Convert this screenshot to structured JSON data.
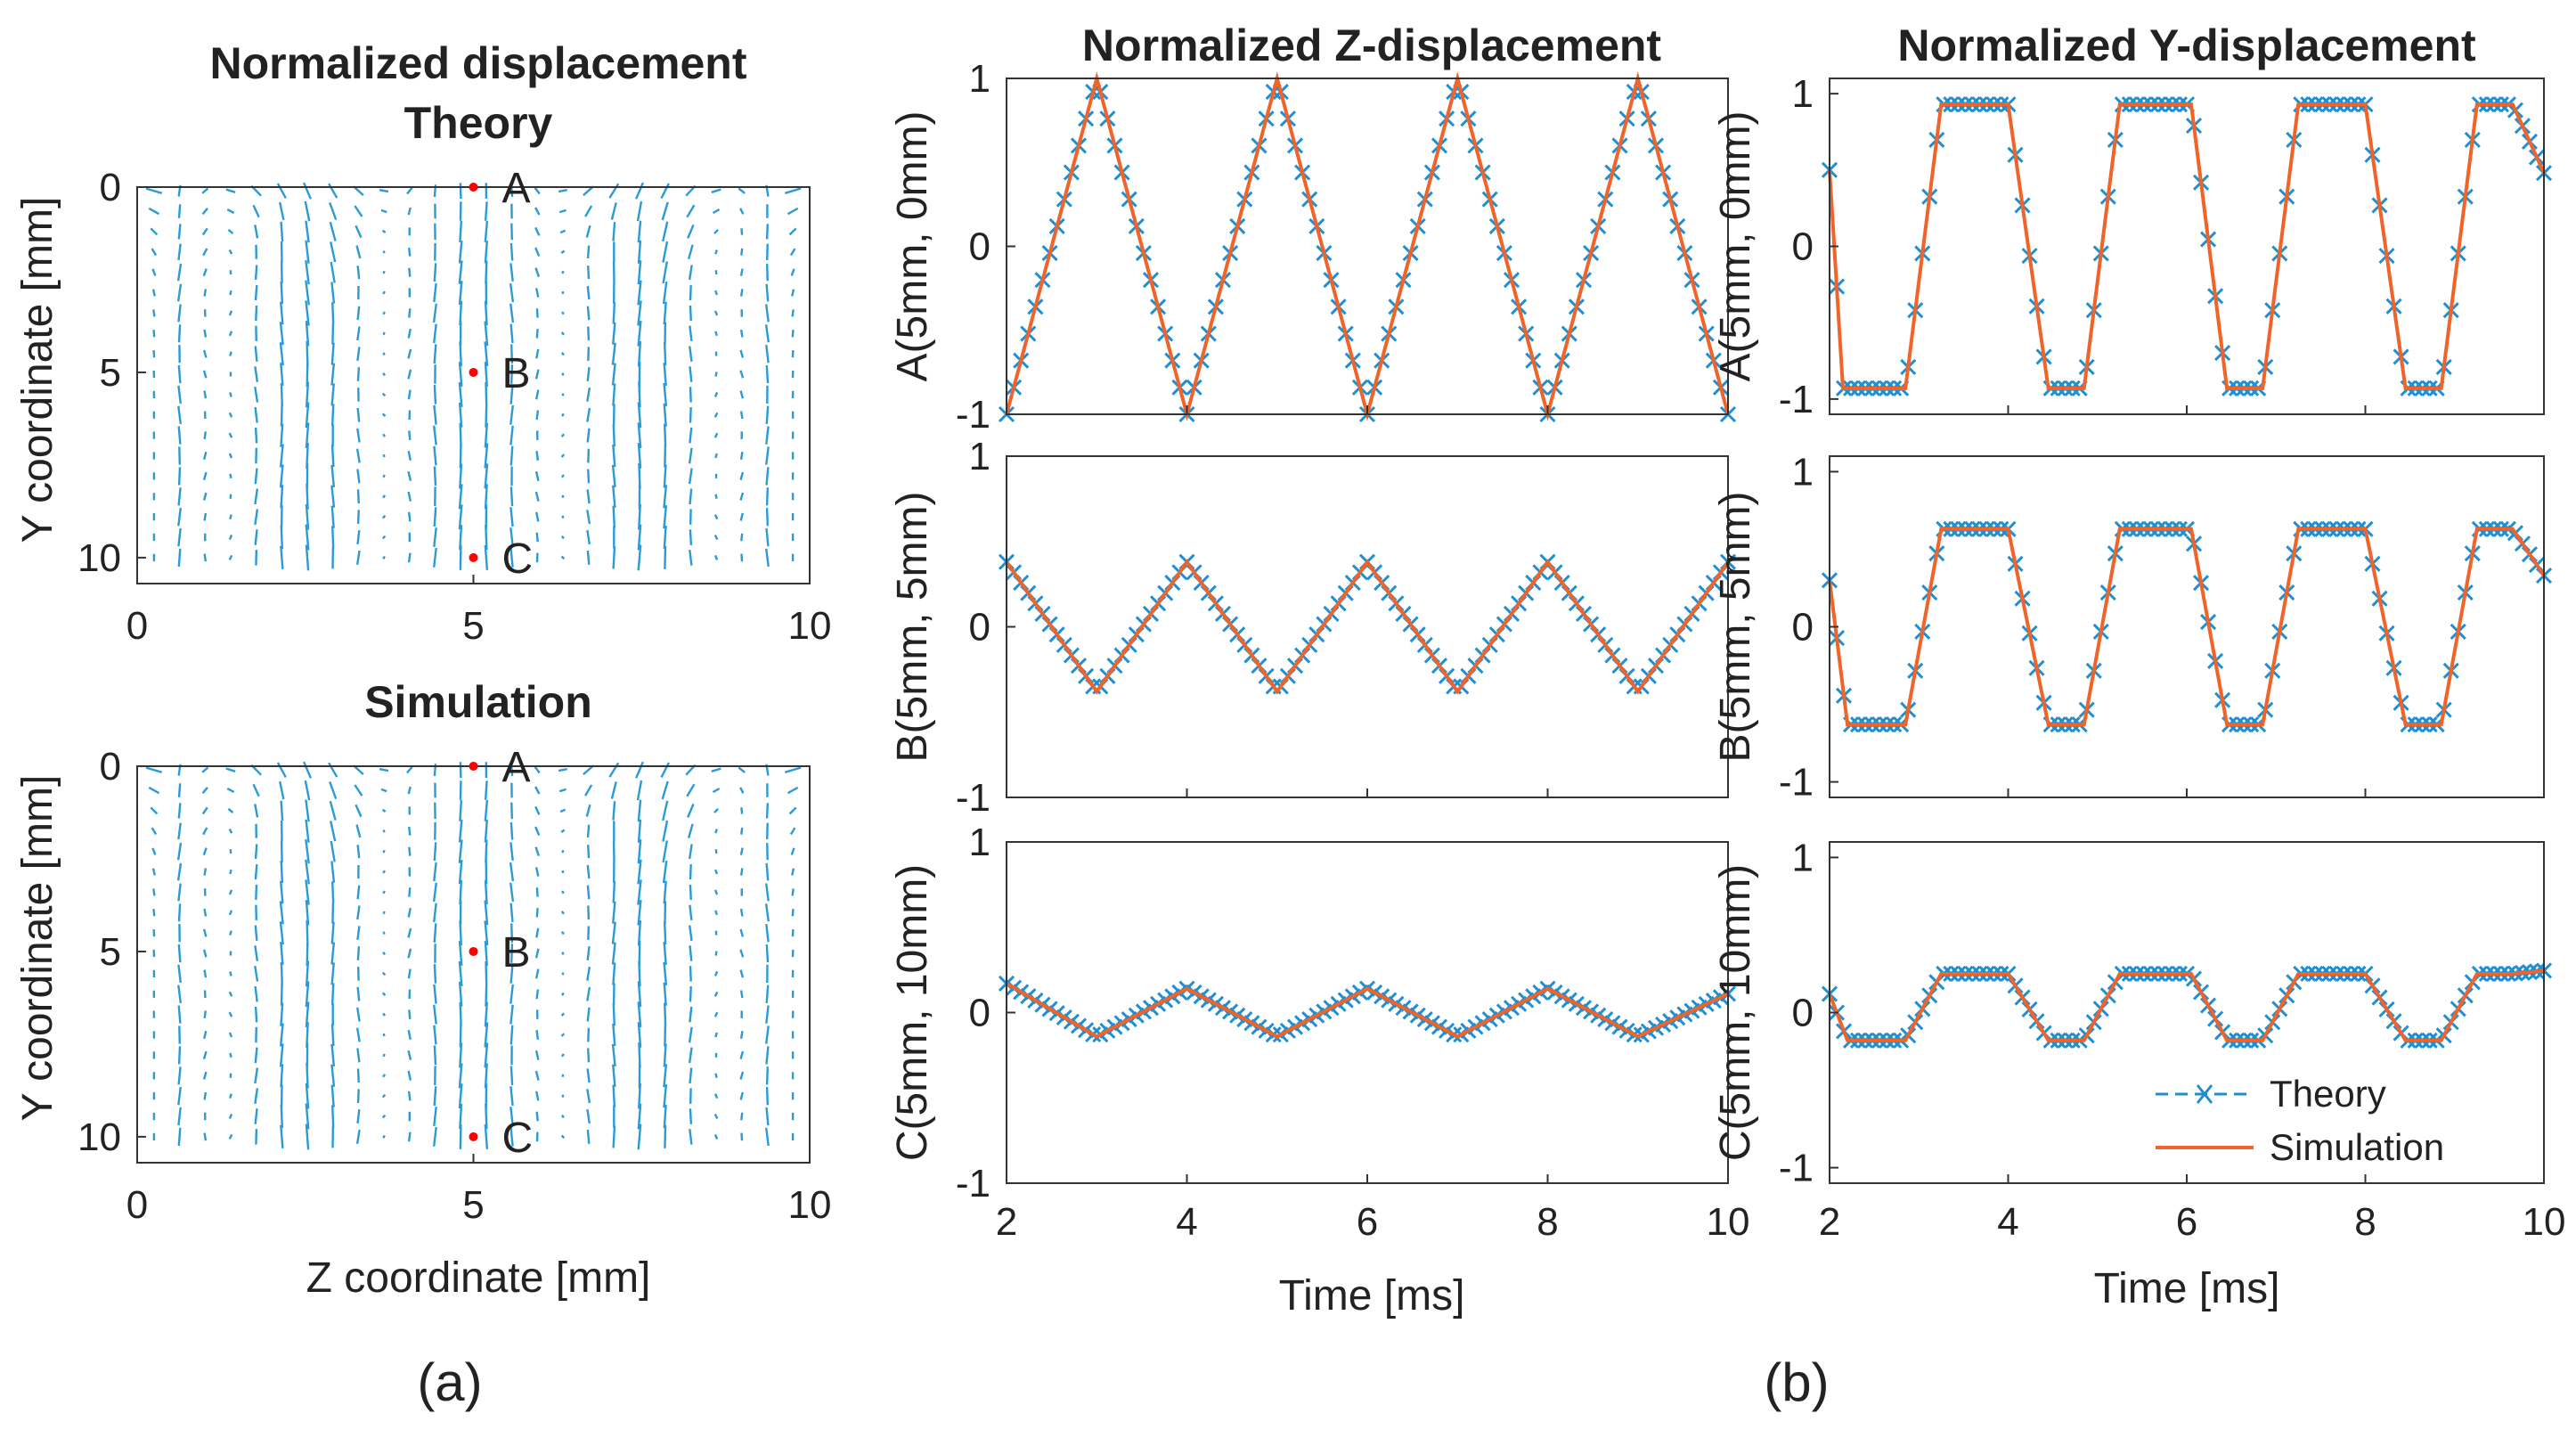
{
  "figure": {
    "caption_a": "(a)",
    "caption_b": "(b)",
    "colors": {
      "theory": "#1f8fd4",
      "simulation": "#f0642a",
      "point": "#ff0000",
      "axis": "#333333",
      "quiver": "#2b9bd8"
    }
  },
  "panel_a": {
    "heading": "Normalized displacement",
    "plots": [
      {
        "title": "Theory"
      },
      {
        "title": "Simulation"
      }
    ],
    "xlabel": "Z coordinate [mm]",
    "ylabel": "Y coordinate [mm]",
    "xticks": [
      "0",
      "5",
      "10"
    ],
    "yticks": [
      "0",
      "5",
      "10"
    ],
    "xlim": [
      0,
      10
    ],
    "ylim": [
      0,
      10.7
    ],
    "points": [
      {
        "label": "A",
        "z": 5,
        "y": 0
      },
      {
        "label": "B",
        "z": 5,
        "y": 5
      },
      {
        "label": "C",
        "z": 5,
        "y": 10
      }
    ]
  },
  "panel_b": {
    "col_titles": [
      "Normalized Z-displacement",
      "Normalized Y-displacement"
    ],
    "ylabels": [
      "A(5mm, 0mm)",
      "B(5mm, 5mm)",
      "C(5mm, 10mm)"
    ],
    "xlabel": "Time [ms]",
    "xticks": [
      "2",
      "4",
      "6",
      "8",
      "10"
    ],
    "yticks": [
      "-1",
      "0",
      "1"
    ],
    "legend": {
      "theory": "Theory",
      "simulation": "Simulation"
    }
  },
  "chart_data": [
    {
      "type": "scatter",
      "title": "Theory",
      "xlabel": "Z coordinate [mm]",
      "ylabel": "Y coordinate [mm]",
      "xlim": [
        0,
        10
      ],
      "ylim": [
        10.7,
        0
      ],
      "annotations": [
        {
          "label": "A",
          "z": 5,
          "y": 0
        },
        {
          "label": "B",
          "z": 5,
          "y": 5
        },
        {
          "label": "C",
          "z": 5,
          "y": 10
        }
      ]
    },
    {
      "type": "scatter",
      "title": "Simulation",
      "xlabel": "Z coordinate [mm]",
      "ylabel": "Y coordinate [mm]",
      "xlim": [
        0,
        10
      ],
      "ylim": [
        10.7,
        0
      ],
      "annotations": [
        {
          "label": "A",
          "z": 5,
          "y": 0
        },
        {
          "label": "B",
          "z": 5,
          "y": 5
        },
        {
          "label": "C",
          "z": 5,
          "y": 10
        }
      ]
    },
    {
      "type": "line",
      "title": "Normalized Z-displacement",
      "ylabel": "A(5mm, 0mm)",
      "xlim": [
        2,
        10
      ],
      "ylim": [
        -1,
        1
      ],
      "x": [
        2,
        3,
        4,
        5,
        6,
        7,
        8,
        9,
        10
      ],
      "series": [
        {
          "name": "Theory",
          "y": [
            -1,
            1,
            -1,
            1,
            -1,
            1,
            -1,
            1,
            -1
          ]
        },
        {
          "name": "Simulation",
          "y": [
            -1,
            1,
            -1,
            1,
            -1,
            1,
            -1,
            1,
            -1
          ]
        }
      ]
    },
    {
      "type": "line",
      "ylabel": "B(5mm, 5mm)",
      "xlim": [
        2,
        10
      ],
      "ylim": [
        -1,
        1
      ],
      "x": [
        2,
        3,
        4,
        5,
        6,
        7,
        8,
        9,
        10
      ],
      "series": [
        {
          "name": "Theory",
          "y": [
            0.38,
            -0.38,
            0.38,
            -0.38,
            0.38,
            -0.38,
            0.38,
            -0.38,
            0.38
          ]
        },
        {
          "name": "Simulation",
          "y": [
            0.38,
            -0.38,
            0.38,
            -0.38,
            0.38,
            -0.38,
            0.38,
            -0.38,
            0.38
          ]
        }
      ]
    },
    {
      "type": "line",
      "ylabel": "C(5mm, 10mm)",
      "xlabel": "Time [ms]",
      "xlim": [
        2,
        10
      ],
      "ylim": [
        -1,
        1
      ],
      "x": [
        2,
        3,
        4,
        5,
        6,
        7,
        8,
        9,
        10
      ],
      "series": [
        {
          "name": "Theory",
          "y": [
            0.17,
            -0.14,
            0.14,
            -0.14,
            0.14,
            -0.14,
            0.14,
            -0.14,
            0.11
          ]
        },
        {
          "name": "Simulation",
          "y": [
            0.17,
            -0.14,
            0.14,
            -0.14,
            0.14,
            -0.14,
            0.14,
            -0.14,
            0.11
          ]
        }
      ]
    },
    {
      "type": "line",
      "title": "Normalized Y-displacement",
      "ylabel": "A(5mm, 0mm)",
      "xlim": [
        2,
        10
      ],
      "ylim": [
        -1.1,
        1.1
      ],
      "x": [
        2,
        2.15,
        2.45,
        2.85,
        3.25,
        3.65,
        4.0,
        4.45,
        4.85,
        5.25,
        5.65,
        6.05,
        6.45,
        6.85,
        7.25,
        7.65,
        8.0,
        8.45,
        8.85,
        9.25,
        9.65,
        10
      ],
      "series": [
        {
          "name": "Theory",
          "y": [
            0.5,
            -0.93,
            -0.93,
            -0.93,
            0.93,
            0.93,
            0.93,
            -0.93,
            -0.93,
            0.93,
            0.93,
            0.93,
            -0.93,
            -0.93,
            0.93,
            0.93,
            0.93,
            -0.93,
            -0.93,
            0.93,
            0.93,
            0.48
          ]
        },
        {
          "name": "Simulation",
          "y": [
            0.5,
            -0.93,
            -0.93,
            -0.93,
            0.93,
            0.93,
            0.93,
            -0.93,
            -0.93,
            0.93,
            0.93,
            0.93,
            -0.93,
            -0.93,
            0.93,
            0.93,
            0.93,
            -0.93,
            -0.93,
            0.93,
            0.93,
            0.48
          ]
        }
      ]
    },
    {
      "type": "line",
      "ylabel": "B(5mm, 5mm)",
      "xlim": [
        2,
        10
      ],
      "ylim": [
        -1.1,
        1.1
      ],
      "x": [
        2,
        2.2,
        2.45,
        2.85,
        3.25,
        3.65,
        4.0,
        4.45,
        4.85,
        5.25,
        5.65,
        6.05,
        6.45,
        6.85,
        7.25,
        7.65,
        8.0,
        8.45,
        8.85,
        9.25,
        9.65,
        10
      ],
      "series": [
        {
          "name": "Theory",
          "y": [
            0.3,
            -0.63,
            -0.63,
            -0.63,
            0.63,
            0.63,
            0.63,
            -0.63,
            -0.63,
            0.63,
            0.63,
            0.63,
            -0.63,
            -0.63,
            0.63,
            0.63,
            0.63,
            -0.63,
            -0.63,
            0.63,
            0.63,
            0.33
          ]
        },
        {
          "name": "Simulation",
          "y": [
            0.3,
            -0.63,
            -0.63,
            -0.63,
            0.63,
            0.63,
            0.63,
            -0.63,
            -0.63,
            0.63,
            0.63,
            0.63,
            -0.63,
            -0.63,
            0.63,
            0.63,
            0.63,
            -0.63,
            -0.63,
            0.63,
            0.63,
            0.33
          ]
        }
      ]
    },
    {
      "type": "line",
      "ylabel": "C(5mm, 10mm)",
      "xlabel": "Time [ms]",
      "legend": [
        "Theory",
        "Simulation"
      ],
      "legend_loc": "bottom-right",
      "xlim": [
        2,
        10
      ],
      "ylim": [
        -1.1,
        1.1
      ],
      "x": [
        2,
        2.2,
        2.45,
        2.85,
        3.25,
        3.65,
        4.0,
        4.45,
        4.85,
        5.25,
        5.65,
        6.05,
        6.45,
        6.85,
        7.25,
        7.65,
        8.0,
        8.45,
        8.85,
        9.25,
        9.65,
        10
      ],
      "series": [
        {
          "name": "Theory",
          "y": [
            0.12,
            -0.18,
            -0.18,
            -0.18,
            0.25,
            0.25,
            0.25,
            -0.18,
            -0.18,
            0.25,
            0.25,
            0.25,
            -0.18,
            -0.18,
            0.25,
            0.25,
            0.25,
            -0.18,
            -0.18,
            0.25,
            0.25,
            0.27
          ]
        },
        {
          "name": "Simulation",
          "y": [
            0.12,
            -0.18,
            -0.18,
            -0.18,
            0.25,
            0.25,
            0.25,
            -0.18,
            -0.18,
            0.25,
            0.25,
            0.25,
            -0.18,
            -0.18,
            0.25,
            0.25,
            0.25,
            -0.18,
            -0.18,
            0.25,
            0.25,
            0.27
          ]
        }
      ]
    }
  ]
}
